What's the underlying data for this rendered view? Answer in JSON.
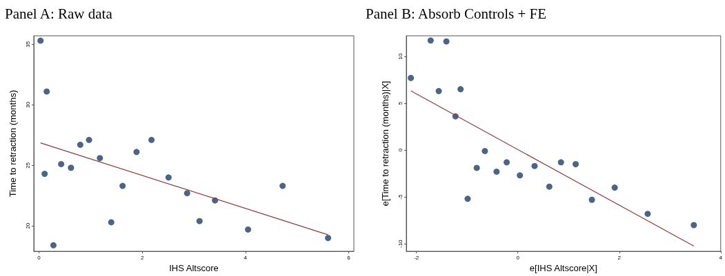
{
  "chart_data": [
    {
      "type": "scatter",
      "title": "Panel A: Raw data",
      "xlabel": "IHS Altscore",
      "ylabel": "Time to retraction (months)",
      "xlim": [
        -0.1,
        6.1
      ],
      "xticks": [
        0,
        2,
        4,
        6
      ],
      "ylim": [
        17.9,
        35.7
      ],
      "yticks": [
        20,
        25,
        30,
        35
      ],
      "grid": false,
      "line_style": "solid",
      "series": [
        {
          "marker": "circle",
          "color": "#1f3f66",
          "x": [
            0.03,
            0.15,
            0.11,
            0.28,
            0.43,
            0.62,
            0.8,
            0.97,
            1.18,
            1.4,
            1.62,
            1.89,
            2.18,
            2.51,
            2.87,
            3.11,
            3.41,
            4.05,
            4.72,
            5.6
          ],
          "values": [
            35.3,
            31.1,
            24.3,
            18.4,
            25.1,
            24.8,
            26.7,
            27.1,
            25.6,
            20.3,
            23.3,
            26.1,
            27.1,
            24.0,
            22.7,
            20.4,
            22.1,
            19.7,
            23.3,
            19.0
          ]
        },
        {
          "type": "line",
          "color": "#8b3a3a",
          "x": [
            0.03,
            5.6
          ],
          "values": [
            26.85,
            19.26
          ]
        }
      ]
    },
    {
      "type": "scatter",
      "title": "Panel B: Absorb Controls + FE",
      "xlabel": "e[IHS Altscore|X]",
      "ylabel": "e[Time to retraction (months)|X]",
      "xlim": [
        -2.2,
        4
      ],
      "xticks": [
        -2,
        0,
        2,
        4
      ],
      "ylim": [
        -10.8,
        12.2
      ],
      "yticks": [
        -10,
        -5,
        0,
        5,
        10
      ],
      "grid": false,
      "line_style": "solid",
      "series": [
        {
          "marker": "circle",
          "color": "#1f3f66",
          "x": [
            -2.11,
            -1.72,
            -1.41,
            -1.56,
            -1.13,
            -1.23,
            -0.65,
            -0.81,
            -0.99,
            -0.42,
            -0.22,
            0.04,
            0.33,
            0.62,
            0.85,
            1.14,
            1.46,
            1.91,
            2.56,
            3.47
          ],
          "values": [
            7.7,
            11.7,
            11.6,
            6.3,
            6.5,
            3.6,
            -0.1,
            -1.9,
            -5.2,
            -2.3,
            -1.3,
            -2.7,
            -1.7,
            -3.9,
            -1.3,
            -1.5,
            -5.3,
            -4.0,
            -6.8,
            -8.0
          ]
        },
        {
          "type": "line",
          "color": "#8b3a3a",
          "x": [
            -2.11,
            3.47
          ],
          "values": [
            6.32,
            -10.24
          ]
        }
      ]
    }
  ]
}
